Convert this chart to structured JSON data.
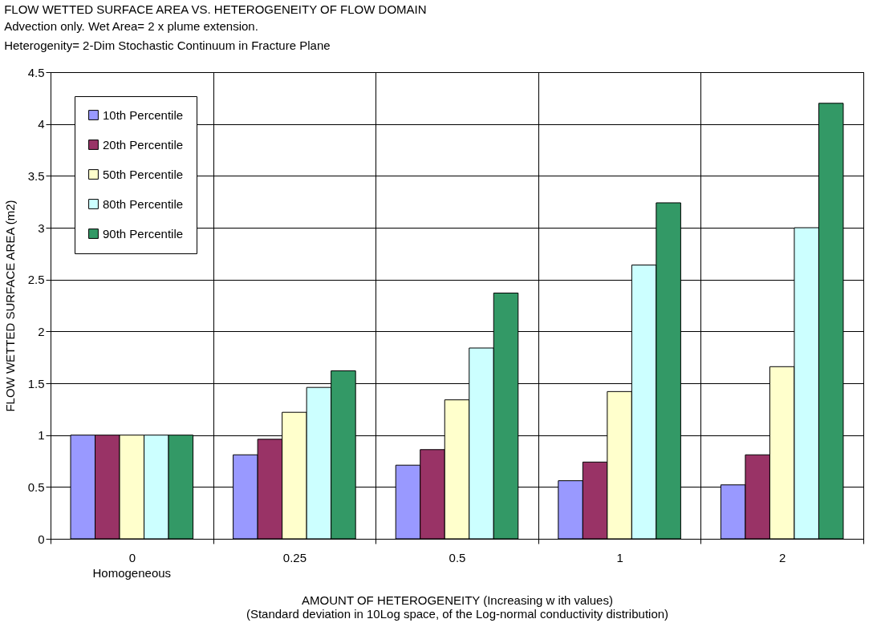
{
  "chart_data": {
    "type": "bar",
    "title": "FLOW WETTED SURFACE AREA  VS. HETEROGENEITY OF FLOW DOMAIN",
    "subtitle": "Advection only.  Wet Area= 2 x plume extension.\nHeterogenity= 2-Dim Stochastic Continuum in Fracture Plane",
    "xlabel": "AMOUNT OF HETEROGENEITY (Increasing w ith values)",
    "ylabel": "FLOW WETTED SURFACE AREA (m2)",
    "annotations": [
      "Homogeneous",
      "(Standard deviation in 10Log space, of the Log-normal conductivity distribution)"
    ],
    "categories": [
      "0",
      "0.25",
      "0.5",
      "1",
      "2"
    ],
    "series": [
      {
        "name": "10th Percentile",
        "color": "#9999ff",
        "values": [
          1,
          0.81,
          0.71,
          0.56,
          0.52
        ]
      },
      {
        "name": "20th Percentile",
        "color": "#993366",
        "values": [
          1,
          0.96,
          0.86,
          0.74,
          0.81
        ]
      },
      {
        "name": "50th Percentile",
        "color": "#ffffcc",
        "values": [
          1,
          1.22,
          1.34,
          1.42,
          1.66
        ]
      },
      {
        "name": "80th Percentile",
        "color": "#ccffff",
        "values": [
          1,
          1.46,
          1.84,
          2.64,
          3.0
        ]
      },
      {
        "name": "90th Percentile",
        "color": "#339966",
        "values": [
          1,
          1.62,
          2.37,
          3.24,
          4.2
        ]
      }
    ],
    "ylim": [
      0,
      4.5
    ],
    "yticks": [
      0,
      0.5,
      1,
      1.5,
      2,
      2.5,
      3,
      3.5,
      4,
      4.5
    ],
    "grid": true,
    "legend": "top left"
  }
}
